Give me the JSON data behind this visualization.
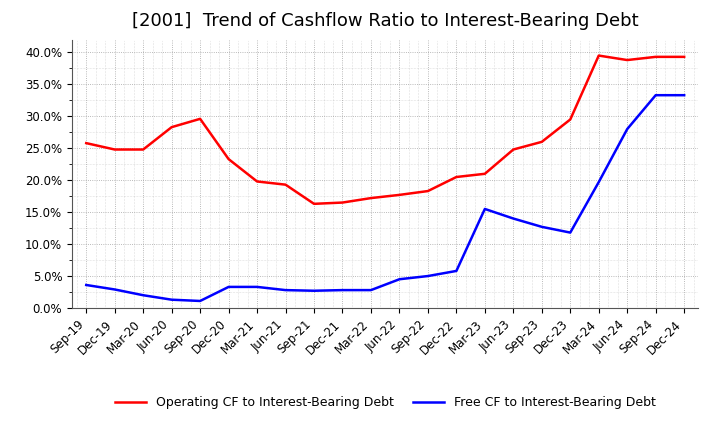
{
  "title": "[2001]  Trend of Cashflow Ratio to Interest-Bearing Debt",
  "x_labels": [
    "Sep-19",
    "Dec-19",
    "Mar-20",
    "Jun-20",
    "Sep-20",
    "Dec-20",
    "Mar-21",
    "Jun-21",
    "Sep-21",
    "Dec-21",
    "Mar-22",
    "Jun-22",
    "Sep-22",
    "Dec-22",
    "Mar-23",
    "Jun-23",
    "Sep-23",
    "Dec-23",
    "Mar-24",
    "Jun-24",
    "Sep-24",
    "Dec-24"
  ],
  "operating_cf": [
    0.258,
    0.248,
    0.248,
    0.283,
    0.296,
    0.233,
    0.198,
    0.193,
    0.163,
    0.165,
    0.172,
    0.177,
    0.183,
    0.205,
    0.21,
    0.248,
    0.26,
    0.295,
    0.395,
    0.388,
    0.393,
    0.393
  ],
  "free_cf": [
    0.036,
    0.029,
    0.02,
    0.013,
    0.011,
    0.033,
    0.033,
    0.028,
    0.027,
    0.028,
    0.028,
    0.045,
    0.05,
    0.058,
    0.155,
    0.14,
    0.127,
    0.118,
    0.197,
    0.28,
    0.333,
    0.333
  ],
  "ylim": [
    0.0,
    0.42
  ],
  "yticks": [
    0.0,
    0.05,
    0.1,
    0.15,
    0.2,
    0.25,
    0.3,
    0.35,
    0.4
  ],
  "operating_color": "#FF0000",
  "free_color": "#0000FF",
  "background_color": "#FFFFFF",
  "plot_bg_color": "#FFFFFF",
  "grid_color": "#999999",
  "legend_op": "Operating CF to Interest-Bearing Debt",
  "legend_free": "Free CF to Interest-Bearing Debt",
  "title_fontsize": 13,
  "label_fontsize": 8.5
}
